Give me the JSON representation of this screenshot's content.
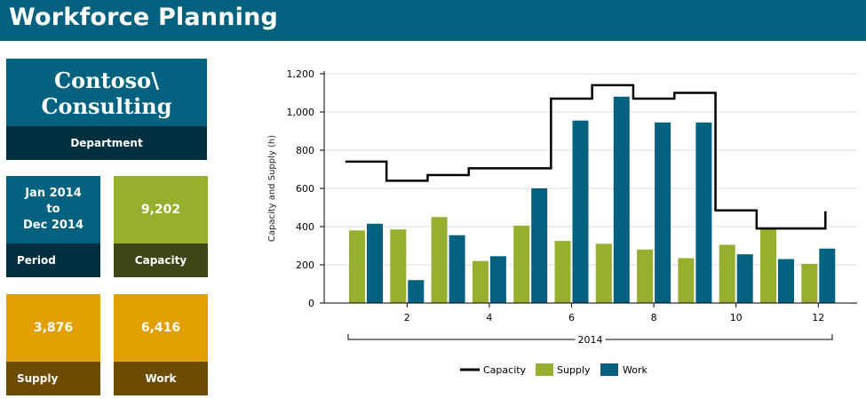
{
  "header": {
    "title": "Workforce Planning"
  },
  "tiles": {
    "department": {
      "value": "Contoso\\\nConsulting",
      "label": "Department"
    },
    "period": {
      "value": "Jan 2014\nto\nDec 2014",
      "label": "Period"
    },
    "capacity": {
      "value": "9,202",
      "label": "Capacity"
    },
    "supply": {
      "value": "3,876",
      "label": "Supply"
    },
    "work": {
      "value": "6,416",
      "label": "Work"
    }
  },
  "colors": {
    "header": "#02617e",
    "capacity": "#000000",
    "supply": "#96af2e",
    "work": "#02617e",
    "tile_yellow": "#e29f00"
  },
  "chart_data": {
    "type": "bar",
    "title": "",
    "xlabel": "2014",
    "ylabel": "Capacity and Supply (h)",
    "ylim": [
      0,
      1200
    ],
    "yticks": [
      "0",
      "200",
      "400",
      "600",
      "800",
      "1,000",
      "1,200"
    ],
    "xticks": [
      "2",
      "4",
      "6",
      "8",
      "10",
      "12"
    ],
    "categories": [
      "1",
      "2",
      "3",
      "4",
      "5",
      "6",
      "7",
      "8",
      "9",
      "10",
      "11",
      "12"
    ],
    "series": [
      {
        "name": "Capacity",
        "type": "step-line",
        "values": [
          740,
          640,
          670,
          705,
          705,
          1070,
          1140,
          1070,
          1100,
          485,
          390,
          480
        ]
      },
      {
        "name": "Supply",
        "type": "bar",
        "values": [
          380,
          385,
          450,
          220,
          405,
          325,
          310,
          280,
          235,
          305,
          390,
          205
        ]
      },
      {
        "name": "Work",
        "type": "bar",
        "values": [
          415,
          120,
          355,
          245,
          600,
          955,
          1080,
          945,
          945,
          255,
          230,
          285
        ]
      }
    ],
    "grid": true,
    "legend": "bottom"
  }
}
